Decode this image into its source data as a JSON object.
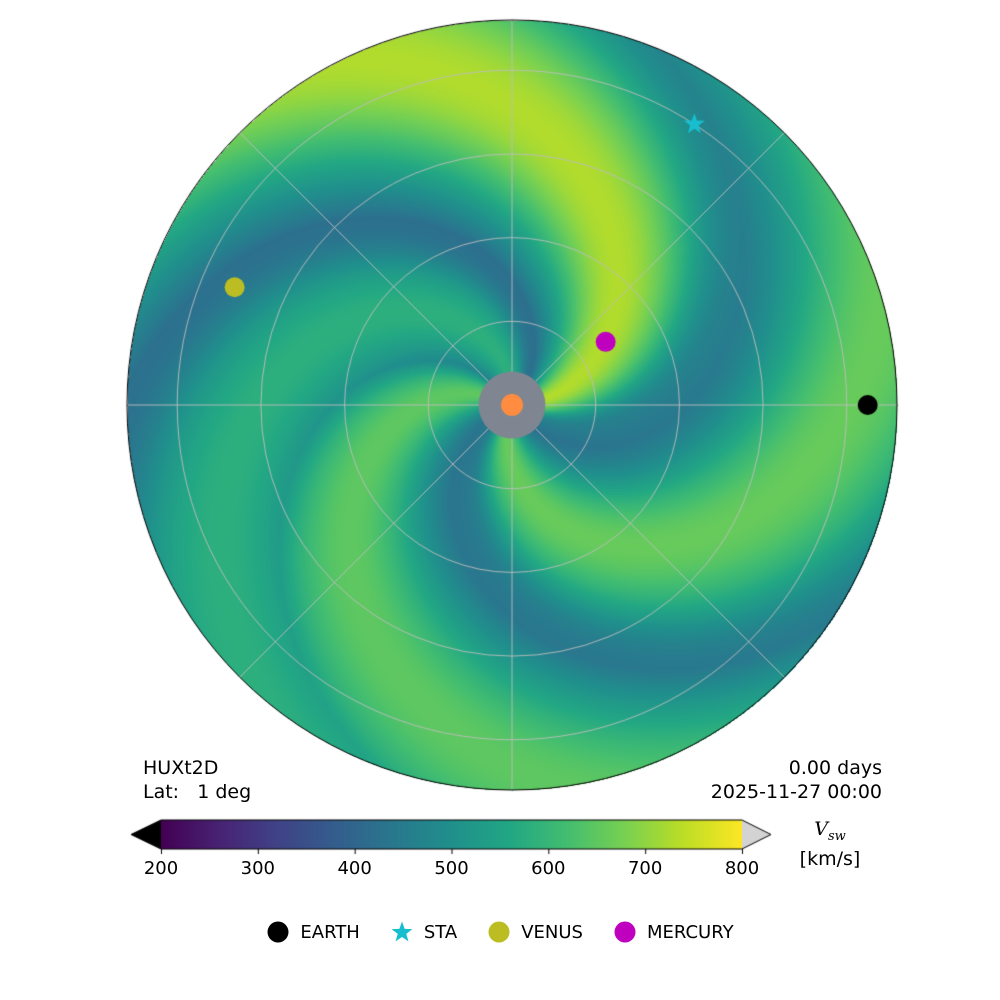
{
  "chart_data": {
    "type": "heatmap",
    "projection": "polar",
    "field": "solar wind speed",
    "model_label": "HUXt2D",
    "latitude_label": "Lat:",
    "latitude_value": "1 deg",
    "time_label": "0.00 days",
    "date_label": "2025-11-27 00:00",
    "grid": true,
    "colorbar": {
      "colormap": "viridis",
      "min": 200,
      "max": 800,
      "ticks": [
        200,
        300,
        400,
        500,
        600,
        700,
        800
      ],
      "tick_labels": [
        "200",
        "300",
        "400",
        "500",
        "600",
        "700",
        "800"
      ],
      "label_symbol": "V",
      "label_subscript": "sw",
      "label_units": "[km/s]",
      "extend": "both",
      "under_color": "#000000",
      "over_color": "#d3d3d3"
    },
    "radial_grid_au": [
      0.2,
      0.4,
      0.6,
      0.8
    ],
    "outer_radius_au": 0.92,
    "inner_boundary_au": 0.08,
    "wind_structure": {
      "background_speed_kms": 410,
      "streams": [
        {
          "name_hint": "fast stream toward Earth",
          "source_longitude_deg": 2,
          "peak_speed_kms": 730
        },
        {
          "name_hint": "stream toward Venus",
          "source_longitude_deg": 150,
          "peak_speed_kms": 650
        },
        {
          "name_hint": "southern stream",
          "source_longitude_deg": 250,
          "peak_speed_kms": 660
        },
        {
          "name_hint": "northern arm",
          "source_longitude_deg": 86,
          "peak_speed_kms": 580
        }
      ]
    },
    "bodies": [
      {
        "name": "EARTH",
        "marker": "circle",
        "color": "#000000",
        "r_au": 0.85,
        "longitude_deg": 0
      },
      {
        "name": "STA",
        "marker": "star",
        "color": "#17becf",
        "r_au": 0.8,
        "longitude_deg": 57
      },
      {
        "name": "VENUS",
        "marker": "circle",
        "color": "#bcbd22",
        "r_au": 0.72,
        "longitude_deg": 157
      },
      {
        "name": "MERCURY",
        "marker": "circle",
        "color": "#bf00bf",
        "r_au": 0.27,
        "longitude_deg": 34
      }
    ],
    "sun": {
      "color": "#ff8c40",
      "disk_color": "#7f8691"
    }
  },
  "legend": [
    {
      "name": "EARTH",
      "marker": "circle",
      "color": "#000000"
    },
    {
      "name": "STA",
      "marker": "star",
      "color": "#17becf"
    },
    {
      "name": "VENUS",
      "marker": "circle",
      "color": "#bcbd22"
    },
    {
      "name": "MERCURY",
      "marker": "circle",
      "color": "#bf00bf"
    }
  ]
}
